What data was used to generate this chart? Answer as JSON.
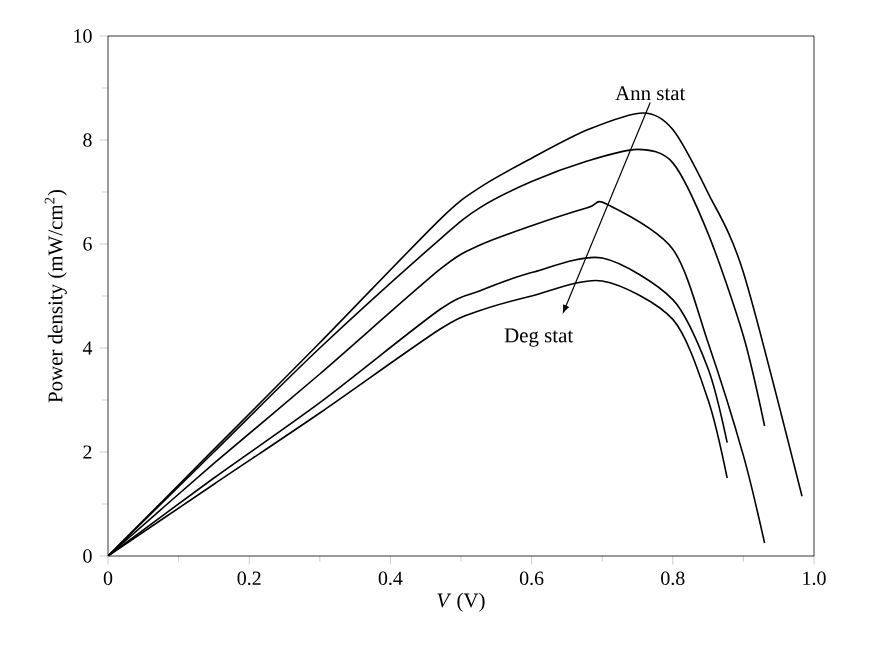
{
  "chart_data": {
    "type": "line",
    "xlabel": "*V* (V)",
    "ylabel": "Power density (mW/cm$^{2}$)",
    "xlim": [
      0,
      1
    ],
    "ylim": [
      0,
      10
    ],
    "xticks": [
      0,
      0.2,
      0.4,
      0.6,
      0.8,
      {
        "value": 1,
        "label": "1.0"
      }
    ],
    "yticks": [
      0,
      2,
      4,
      6,
      8,
      10
    ],
    "grid": false,
    "marker": "none",
    "line_style": "solid",
    "series": [
      {
        "color": "#000000",
        "x": [
          0,
          0.15,
          0.3,
          0.47,
          0.527,
          0.6,
          0.68,
          0.758,
          0.8,
          0.85,
          0.9,
          0.983
        ],
        "values": [
          0,
          2.05,
          4.1,
          6.47,
          7.09,
          7.65,
          8.2,
          8.52,
          8.2,
          6.98,
          5.45,
          1.15
        ]
      },
      {
        "color": "#000000",
        "x": [
          0,
          0.15,
          0.3,
          0.47,
          0.527,
          0.6,
          0.68,
          0.75,
          0.8,
          0.85,
          0.9,
          0.93
        ],
        "values": [
          0,
          2.0,
          4.0,
          6.09,
          6.7,
          7.2,
          7.6,
          7.82,
          7.56,
          6.2,
          4.23,
          2.5
        ]
      },
      {
        "color": "#000000",
        "x": [
          0,
          0.15,
          0.3,
          0.47,
          0.527,
          0.6,
          0.68,
          0.706,
          0.8,
          0.85,
          0.9,
          0.93
        ],
        "values": [
          0,
          1.78,
          3.5,
          5.51,
          5.98,
          6.35,
          6.7,
          6.77,
          5.9,
          4.1,
          1.93,
          0.25
        ]
      },
      {
        "color": "#000000",
        "x": [
          0,
          0.15,
          0.3,
          0.47,
          0.527,
          0.6,
          0.7,
          0.8,
          0.85,
          0.877
        ],
        "values": [
          0,
          1.5,
          2.95,
          4.74,
          5.1,
          5.45,
          5.73,
          4.93,
          3.6,
          2.18
        ]
      },
      {
        "color": "#000000",
        "x": [
          0,
          0.15,
          0.3,
          0.47,
          0.527,
          0.6,
          0.7,
          0.8,
          0.85,
          0.877
        ],
        "values": [
          0,
          1.38,
          2.75,
          4.36,
          4.72,
          5.0,
          5.29,
          4.55,
          3.0,
          1.5
        ]
      }
    ],
    "annotations": [
      "Ann stat",
      "Deg stat"
    ]
  }
}
